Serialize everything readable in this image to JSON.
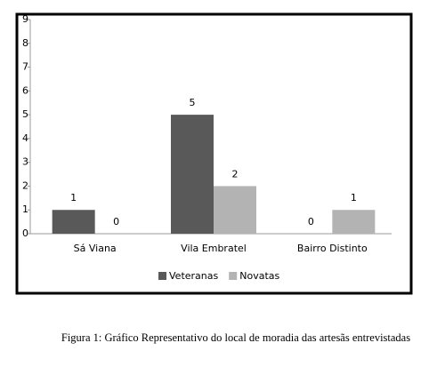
{
  "chart_data": {
    "type": "bar",
    "categories": [
      "Sá Viana",
      "Vila Embratel",
      "Bairro Distinto"
    ],
    "series": [
      {
        "name": "Veteranas",
        "color": "#595959",
        "values": [
          1,
          5,
          0
        ]
      },
      {
        "name": "Novatas",
        "color": "#b3b3b3",
        "values": [
          0,
          2,
          1
        ]
      }
    ],
    "ylim": [
      0,
      9
    ],
    "yticks": [
      0,
      1,
      2,
      3,
      4,
      5,
      6,
      7,
      8,
      9
    ],
    "grid": false,
    "legend": "bottom",
    "caption": "Figura 1: Gráfico Representativo do local de moradia das artesãs entrevistadas"
  }
}
